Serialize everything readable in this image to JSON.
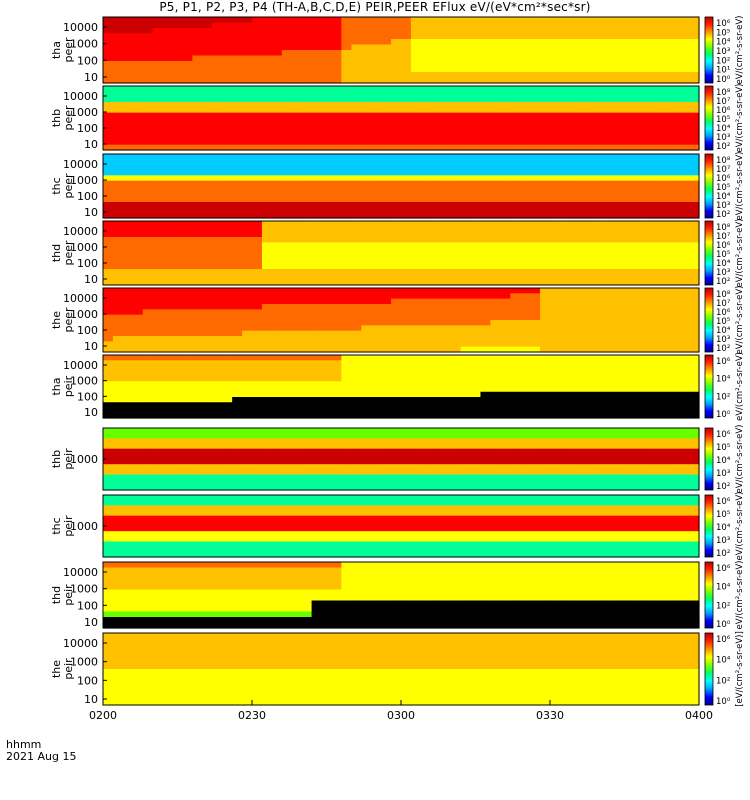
{
  "title": "P5, P1, P2, P3, P4 (TH-A,B,C,D,E) PEIR,PEER EFlux eV/(eV*cm²*sec*sr)",
  "footer": {
    "time_label": "hhmm",
    "date_label": "2021 Aug 15"
  },
  "colors": {
    "scale": [
      "#1e00ff",
      "#0066ff",
      "#00ccff",
      "#00ff99",
      "#66ff00",
      "#ffff00",
      "#ffc000",
      "#ff6a00",
      "#ff0000",
      "#cc0000"
    ]
  },
  "chart_data": {
    "type": "heatmap",
    "x_ticks": [
      "0200",
      "0230",
      "0300",
      "0330",
      "0400"
    ],
    "panels": [
      {
        "id": "tha_peer",
        "label": [
          "tha",
          "peer"
        ],
        "y_ticks": [
          "10000",
          "1000",
          "100",
          "10"
        ],
        "cbar_ticks": [
          "10⁶",
          "10⁵",
          "10⁴",
          "10³",
          "10²",
          "10¹",
          "10⁰"
        ],
        "cbar_label": "eV/(cm²-s-sr-eV)",
        "pattern": "boundary_1"
      },
      {
        "id": "thb_peer",
        "label": [
          "thb",
          "peer"
        ],
        "y_ticks": [
          "10000",
          "1000",
          "100",
          "10"
        ],
        "cbar_ticks": [
          "10⁸",
          "10⁷",
          "10⁶",
          "10⁵",
          "10⁴",
          "10³",
          "10²"
        ],
        "cbar_label": "eV/(cm²-s-sr-eV)",
        "pattern": "bands_hot"
      },
      {
        "id": "thc_peer",
        "label": [
          "thc",
          "peer"
        ],
        "y_ticks": [
          "10000",
          "1000",
          "100",
          "10"
        ],
        "cbar_ticks": [
          "10⁸",
          "10⁷",
          "10⁶",
          "10⁵",
          "10⁴",
          "10³",
          "10²"
        ],
        "cbar_label": "eV/(cm²-s-sr-eV)",
        "pattern": "bands_cold"
      },
      {
        "id": "thd_peer",
        "label": [
          "thd",
          "peer"
        ],
        "y_ticks": [
          "10000",
          "1000",
          "100",
          "10"
        ],
        "cbar_ticks": [
          "10⁸",
          "10⁷",
          "10⁶",
          "10⁵",
          "10⁴",
          "10³",
          "10²"
        ],
        "cbar_label": "eV/(cm²-s-sr-eV)",
        "pattern": "boundary_2"
      },
      {
        "id": "the_peer",
        "label": [
          "the",
          "peer"
        ],
        "y_ticks": [
          "10000",
          "1000",
          "100",
          "10"
        ],
        "cbar_ticks": [
          "10⁸",
          "10⁷",
          "10⁶",
          "10⁵",
          "10⁴",
          "10³",
          "10²"
        ],
        "cbar_label": "eV/(cm²-s-sr-eV)",
        "pattern": "boundary_3"
      },
      {
        "id": "tha_peir",
        "label": [
          "tha",
          "peir"
        ],
        "y_ticks": [
          "10000",
          "1000",
          "100",
          "10"
        ],
        "cbar_ticks": [
          "10⁶",
          "10⁴",
          "10²",
          "10⁰"
        ],
        "cbar_label": "eV/(cm²-s-sr-eV)",
        "pattern": "ion_black"
      },
      {
        "id": "thb_peir",
        "label": [
          "thb",
          "peir"
        ],
        "y_ticks": [
          "1000"
        ],
        "cbar_ticks": [
          "10⁶",
          "10⁵",
          "10⁴",
          "10³",
          "10²"
        ],
        "cbar_label": "eV/(cm²-s-sr-eV)",
        "pattern": "ion_bands"
      },
      {
        "id": "thc_peir",
        "label": [
          "thc",
          "peir"
        ],
        "y_ticks": [
          "1000"
        ],
        "cbar_ticks": [
          "10⁶",
          "10⁵",
          "10⁴",
          "10³",
          "10²"
        ],
        "cbar_label": "eV/(cm²-s-sr-eV)",
        "pattern": "ion_bands2"
      },
      {
        "id": "thd_peir",
        "label": [
          "thd",
          "peir"
        ],
        "y_ticks": [
          "10000",
          "1000",
          "100",
          "10"
        ],
        "cbar_ticks": [
          "10⁶",
          "10⁴",
          "10²",
          "10⁰"
        ],
        "cbar_label": "eV/(cm²-s-sr-eV)",
        "pattern": "ion_black2"
      },
      {
        "id": "the_peir",
        "label": [
          "the",
          "peir"
        ],
        "y_ticks": [
          "10000",
          "1000",
          "100",
          "10"
        ],
        "cbar_ticks": [
          "10⁶",
          "10⁴",
          "10²",
          "10⁰"
        ],
        "cbar_label": "[eV/(cm²-s-sr-eV)]",
        "pattern": "ion_plain"
      }
    ]
  }
}
